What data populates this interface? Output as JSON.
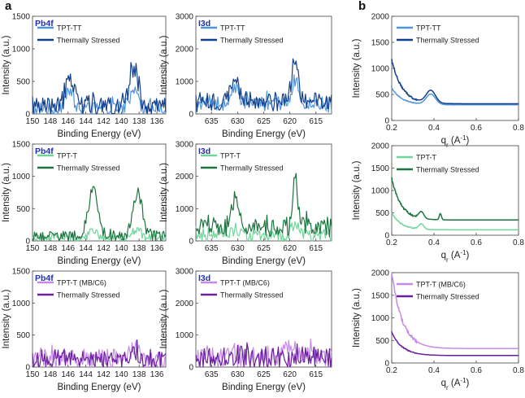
{
  "panel_labels": [
    "a",
    "b"
  ],
  "chart_data": [
    {
      "id": "a11",
      "type": "line",
      "title": "Pb4f",
      "xlabel": "Binding Energy (eV)",
      "ylabel": "Intensity (a.u.)",
      "xlim": [
        150,
        135
      ],
      "ylim": [
        0,
        1500
      ],
      "xticks": [
        150,
        148,
        146,
        144,
        142,
        140,
        138,
        136
      ],
      "yticks": [
        0,
        500,
        1000,
        1500
      ],
      "series": [
        {
          "name": "TPT-TT",
          "color": "#4f95dd",
          "base": 80,
          "noise": 110,
          "peaks": [
            [
              145.8,
              260,
              0.45
            ],
            [
              138.6,
              330,
              0.45
            ]
          ]
        },
        {
          "name": "Thermally Stressed",
          "color": "#123f8c",
          "base": 130,
          "noise": 150,
          "peaks": [
            [
              145.8,
              420,
              0.45
            ],
            [
              138.6,
              560,
              0.45
            ]
          ]
        }
      ]
    },
    {
      "id": "a12",
      "type": "line",
      "title": "I3d",
      "xlabel": "Binding Energy (eV)",
      "ylabel": "Intensity (a.u.)",
      "xlim": [
        638,
        612
      ],
      "ylim": [
        0,
        3000
      ],
      "xticks": [
        635,
        630,
        625,
        620,
        615
      ],
      "yticks": [
        0,
        1000,
        2000,
        3000
      ],
      "series": [
        {
          "name": "TPT-TT",
          "color": "#4f95dd",
          "base": 300,
          "noise": 220,
          "peaks": [
            [
              630.5,
              450,
              0.8
            ],
            [
              619,
              700,
              0.6
            ]
          ]
        },
        {
          "name": "Thermally Stressed",
          "color": "#123f8c",
          "base": 380,
          "noise": 260,
          "peaks": [
            [
              630.5,
              650,
              0.8
            ],
            [
              619,
              1350,
              0.6
            ]
          ]
        }
      ]
    },
    {
      "id": "a21",
      "type": "line",
      "title": "Pb4f",
      "xlabel": "Binding Energy (eV)",
      "ylabel": "Intensity (a.u.)",
      "xlim": [
        150,
        135
      ],
      "ylim": [
        0,
        1500
      ],
      "xticks": [
        150,
        148,
        146,
        144,
        142,
        140,
        138,
        136
      ],
      "yticks": [
        0,
        500,
        1000,
        1500
      ],
      "series": [
        {
          "name": "TPT-T",
          "color": "#6fd69a",
          "base": 40,
          "noise": 60,
          "peaks": [
            [
              143.2,
              130,
              0.45
            ],
            [
              138.2,
              120,
              0.45
            ]
          ]
        },
        {
          "name": "Thermally Stressed",
          "color": "#1e7440",
          "base": 80,
          "noise": 90,
          "peaks": [
            [
              143.2,
              690,
              0.55
            ],
            [
              138.2,
              660,
              0.55
            ]
          ]
        }
      ]
    },
    {
      "id": "a22",
      "type": "line",
      "title": "I3d",
      "xlabel": "Binding Energy (eV)",
      "ylabel": "Intensity (a.u.)",
      "xlim": [
        638,
        612
      ],
      "ylim": [
        0,
        3000
      ],
      "xticks": [
        635,
        630,
        625,
        620,
        615
      ],
      "yticks": [
        0,
        1000,
        2000,
        3000
      ],
      "series": [
        {
          "name": "TPT-T",
          "color": "#6fd69a",
          "base": 170,
          "noise": 200,
          "peaks": [
            [
              630.5,
              200,
              0.8
            ],
            [
              619,
              400,
              0.6
            ]
          ]
        },
        {
          "name": "Thermally Stressed",
          "color": "#1e7440",
          "base": 420,
          "noise": 280,
          "peaks": [
            [
              630.5,
              800,
              0.8
            ],
            [
              619,
              1450,
              0.5
            ]
          ]
        }
      ]
    },
    {
      "id": "a31",
      "type": "line",
      "title": "Pb4f",
      "xlabel": "Binding Energy (eV)",
      "ylabel": "Intensity (a.u.)",
      "xlim": [
        150,
        135
      ],
      "ylim": [
        0,
        1500
      ],
      "xticks": [
        150,
        148,
        146,
        144,
        142,
        140,
        138,
        136
      ],
      "yticks": [
        0,
        500,
        1000,
        1500
      ],
      "series": [
        {
          "name": "TPT-T (MB/C6)",
          "color": "#c78ae8",
          "base": 120,
          "noise": 150,
          "peaks": [
            [
              138.6,
              140,
              0.6
            ]
          ]
        },
        {
          "name": "Thermally Stressed",
          "color": "#6a1f9e",
          "base": 120,
          "noise": 140,
          "peaks": [
            [
              138.6,
              110,
              0.6
            ]
          ]
        }
      ]
    },
    {
      "id": "a32",
      "type": "line",
      "title": "I3d",
      "xlabel": "Binding Energy (eV)",
      "ylabel": "Intensity (a.u.)",
      "xlim": [
        638,
        612
      ],
      "ylim": [
        0,
        3000
      ],
      "xticks": [
        635,
        630,
        625,
        620,
        615
      ],
      "yticks": [
        0,
        1000,
        2000,
        3000
      ],
      "series": [
        {
          "name": "TPT-T (MB/C6)",
          "color": "#c78ae8",
          "base": 330,
          "noise": 300,
          "peaks": [
            [
              620,
              350,
              0.8
            ]
          ]
        },
        {
          "name": "Thermally Stressed",
          "color": "#6a1f9e",
          "base": 300,
          "noise": 320,
          "peaks": []
        }
      ]
    },
    {
      "id": "b1",
      "type": "line",
      "title": "",
      "xlabel": "q_r (A^-1)",
      "ylabel": "Intensity (a.u.)",
      "xlim": [
        0.2,
        0.8
      ],
      "ylim": [
        0,
        2000
      ],
      "xticks": [
        0.2,
        0.4,
        0.6,
        0.8
      ],
      "yticks": [
        0,
        500,
        1000,
        1500,
        2000
      ],
      "series": [
        {
          "name": "TPT-TT",
          "color": "#4f95dd",
          "plateau": 300,
          "amp": 320,
          "tau": 0.05,
          "bumps": [
            [
              0.385,
              200,
              0.022
            ]
          ]
        },
        {
          "name": "Thermally Stressed",
          "color": "#123f8c",
          "plateau": 320,
          "amp": 840,
          "tau": 0.05,
          "bumps": [
            [
              0.385,
              240,
              0.022
            ]
          ]
        }
      ]
    },
    {
      "id": "b2",
      "type": "line",
      "title": "",
      "xlabel": "q_r (A^-1)",
      "ylabel": "Intensity (a.u.)",
      "xlim": [
        0.2,
        0.8
      ],
      "ylim": [
        0,
        2000
      ],
      "xticks": [
        0.2,
        0.4,
        0.6,
        0.8
      ],
      "yticks": [
        0,
        500,
        1000,
        1500,
        2000
      ],
      "series": [
        {
          "name": "TPT-T",
          "color": "#6fd69a",
          "plateau": 120,
          "amp": 380,
          "tau": 0.045,
          "bumps": [
            [
              0.34,
              120,
              0.012
            ]
          ]
        },
        {
          "name": "Thermally Stressed",
          "color": "#1e7440",
          "plateau": 340,
          "amp": 930,
          "tau": 0.045,
          "bumps": [
            [
              0.34,
              150,
              0.012
            ],
            [
              0.43,
              140,
              0.005
            ]
          ]
        }
      ]
    },
    {
      "id": "b3",
      "type": "line",
      "title": "",
      "xlabel": "q_r (A^-1)",
      "ylabel": "Intensity (a.u.)",
      "xlim": [
        0.2,
        0.8
      ],
      "ylim": [
        0,
        2000
      ],
      "xticks": [
        0.2,
        0.4,
        0.6,
        0.8
      ],
      "yticks": [
        0,
        500,
        1000,
        1500,
        2000
      ],
      "series": [
        {
          "name": "TPT-T (MB/C6)",
          "color": "#c78ae8",
          "plateau": 320,
          "amp": 1700,
          "tau": 0.05,
          "bumps": []
        },
        {
          "name": "Thermally Stressed",
          "color": "#6a1f9e",
          "plateau": 165,
          "amp": 520,
          "tau": 0.05,
          "bumps": []
        }
      ]
    }
  ]
}
